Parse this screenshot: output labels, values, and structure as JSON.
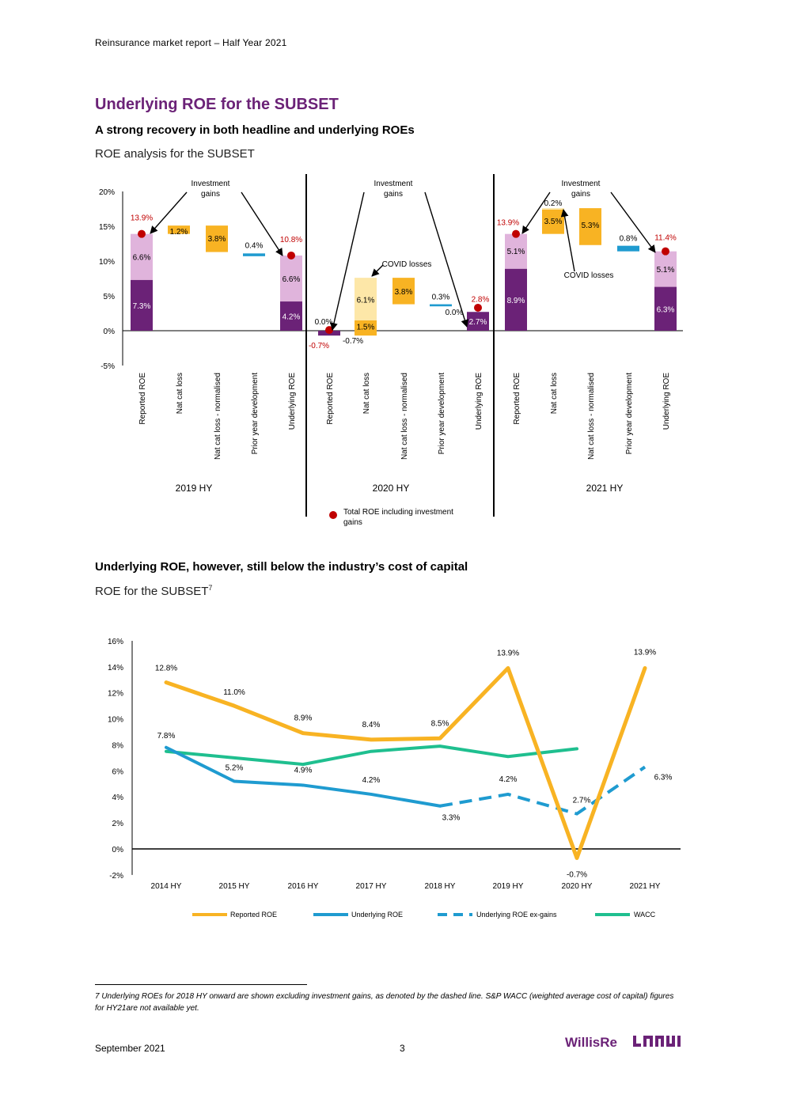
{
  "header": {
    "report_title": "Reinsurance market report – Half Year 2021"
  },
  "section": {
    "title": "Underlying ROE for the SUBSET",
    "subtitle1": "A strong recovery in both headline and underlying ROEs",
    "caption1": "ROE analysis for the SUBSET",
    "subtitle2": "Underlying ROE, however, still below the industry’s cost of capital",
    "caption2": "ROE for the SUBSET",
    "caption2_footnote_ref": "7"
  },
  "colors": {
    "purple_dark": "#6b2277",
    "purple_light": "#e0b4dc",
    "orange": "#f8b323",
    "orange_light": "#fde7a8",
    "blue": "#1f9bd0",
    "green": "#1fbf8f",
    "red": "#c00000",
    "title": "#6b2277"
  },
  "chart_data": [
    {
      "type": "waterfall",
      "title": "ROE analysis for the SUBSET",
      "y_ticks": [
        "20%",
        "15%",
        "10%",
        "5%",
        "0%",
        "-5%"
      ],
      "ylim": [
        -5,
        20
      ],
      "categories": [
        "Reported ROE",
        "Nat cat loss",
        "Nat cat loss - normalised",
        "Prior year development",
        "Underlying ROE"
      ],
      "legend": "Total ROE including investment gains",
      "groups": [
        {
          "name": "2019 HY",
          "reported": {
            "base": 7.3,
            "gains": 6.6,
            "total": 13.9,
            "base_label": "7.3%",
            "gains_label": "6.6%",
            "total_label": "13.9%"
          },
          "nat_cat": {
            "from": 13.9,
            "to": 15.1,
            "label": "1.2%"
          },
          "nat_cat_normalised": {
            "from": 15.1,
            "to": 11.3,
            "label": "3.8%"
          },
          "pyd": {
            "value": 0.4,
            "label": "0.4%"
          },
          "underlying": {
            "base": 4.2,
            "gains": 6.6,
            "total": 10.8,
            "base_label": "4.2%",
            "gains_label": "6.6%",
            "total_label": "10.8%"
          },
          "annotation": "Investment gains"
        },
        {
          "name": "2020 HY",
          "reported": {
            "base": -0.7,
            "gains": 0.0,
            "total": -0.7,
            "base_label": "-0.7%",
            "gains_label": "0.0%",
            "total_label": "-0.7%"
          },
          "nat_cat_covid": {
            "covid": 6.1,
            "natcat": 1.5,
            "covid_label": "6.1%",
            "natcat_label": "1.5%"
          },
          "nat_cat_normalised": {
            "value": 3.8,
            "label": "3.8%"
          },
          "pyd": {
            "value": 0.3,
            "label": "0.3%"
          },
          "underlying": {
            "base": 2.7,
            "gains": 0.0,
            "total": 2.8,
            "base_label": "2.7%",
            "gains_label": "0.0%",
            "total_label": "2.8%"
          },
          "annotation": "Investment gains",
          "covid_label": "COVID losses"
        },
        {
          "name": "2021 HY",
          "reported": {
            "base": 8.9,
            "gains": 5.1,
            "total": 13.9,
            "base_label": "8.9%",
            "gains_label": "5.1%",
            "total_label": "13.9%"
          },
          "covid": {
            "label": "0.2%"
          },
          "nat_cat": {
            "value": 3.5,
            "label": "3.5%"
          },
          "nat_cat_normalised": {
            "value": 5.3,
            "label": "5.3%"
          },
          "pyd": {
            "value": 0.8,
            "label": "0.8%"
          },
          "underlying": {
            "base": 6.3,
            "gains": 5.1,
            "total": 11.4,
            "base_label": "6.3%",
            "gains_label": "5.1%",
            "total_label": "11.4%"
          },
          "annotation": "Investment gains",
          "covid_label": "COVID losses"
        }
      ]
    },
    {
      "type": "line",
      "title": "ROE for the SUBSET",
      "categories": [
        "2014 HY",
        "2015 HY",
        "2016 HY",
        "2017 HY",
        "2018 HY",
        "2019 HY",
        "2020 HY",
        "2021 HY"
      ],
      "y_ticks": [
        "16%",
        "14%",
        "12%",
        "10%",
        "8%",
        "6%",
        "4%",
        "2%",
        "0%",
        "-2%"
      ],
      "ylim": [
        -2,
        16
      ],
      "series": [
        {
          "name": "Reported ROE",
          "values": [
            12.8,
            11.0,
            8.9,
            8.4,
            8.5,
            13.9,
            -0.7,
            13.9
          ],
          "labels": [
            "12.8%",
            "11.0%",
            "8.9%",
            "8.4%",
            "8.5%",
            "13.9%",
            "-0.7%",
            "13.9%"
          ]
        },
        {
          "name": "Underlying ROE",
          "values": [
            7.8,
            5.2,
            4.9,
            4.2,
            3.3,
            null,
            null,
            null
          ],
          "labels": [
            "7.8%",
            "5.2%",
            "4.9%",
            "4.2%",
            "3.3%",
            "",
            "",
            ""
          ]
        },
        {
          "name": "Underlying ROE ex-gains",
          "values": [
            null,
            null,
            null,
            null,
            3.3,
            4.2,
            2.7,
            6.3
          ],
          "labels": [
            "",
            "",
            "",
            "",
            "",
            "4.2%",
            "2.7%",
            "6.3%"
          ]
        },
        {
          "name": "WACC",
          "values": [
            7.5,
            7.0,
            6.5,
            7.5,
            7.9,
            7.1,
            7.7,
            null
          ]
        }
      ]
    }
  ],
  "footnote": "7 Underlying ROEs for 2018 HY onward are shown excluding investment gains, as denoted by the dashed line.  S&P WACC (weighted average cost of capital) figures for HY21are not available yet.",
  "footer": {
    "date": "September 2021",
    "page": "3",
    "logo_text": "WillisRe"
  }
}
